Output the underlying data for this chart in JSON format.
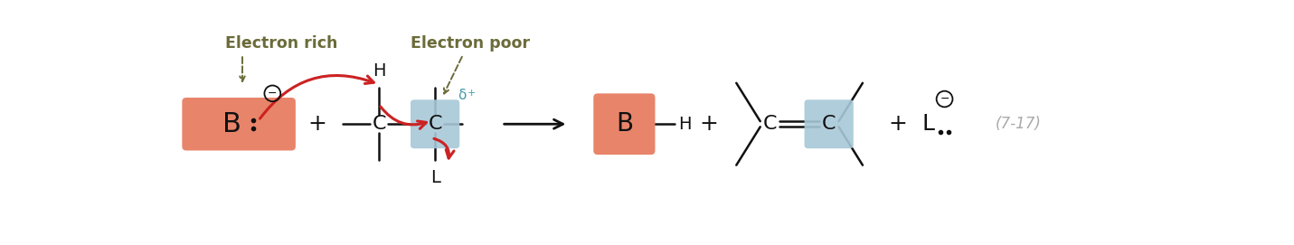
{
  "bg_color": "#ffffff",
  "salmon_color": "#E8846A",
  "blue_color": "#A8C8D8",
  "text_color_dark": "#6B6B3A",
  "red_arrow": "#CC2222",
  "black": "#111111",
  "delta_plus_color": "#4499AA",
  "label_electron_rich": "Electron rich",
  "label_electron_poor": "Electron poor",
  "equation_label": "(7-17)",
  "figsize": [
    14.31,
    2.71
  ],
  "dpi": 100,
  "xlim": [
    0,
    14.31
  ],
  "ylim": [
    0,
    2.71
  ]
}
